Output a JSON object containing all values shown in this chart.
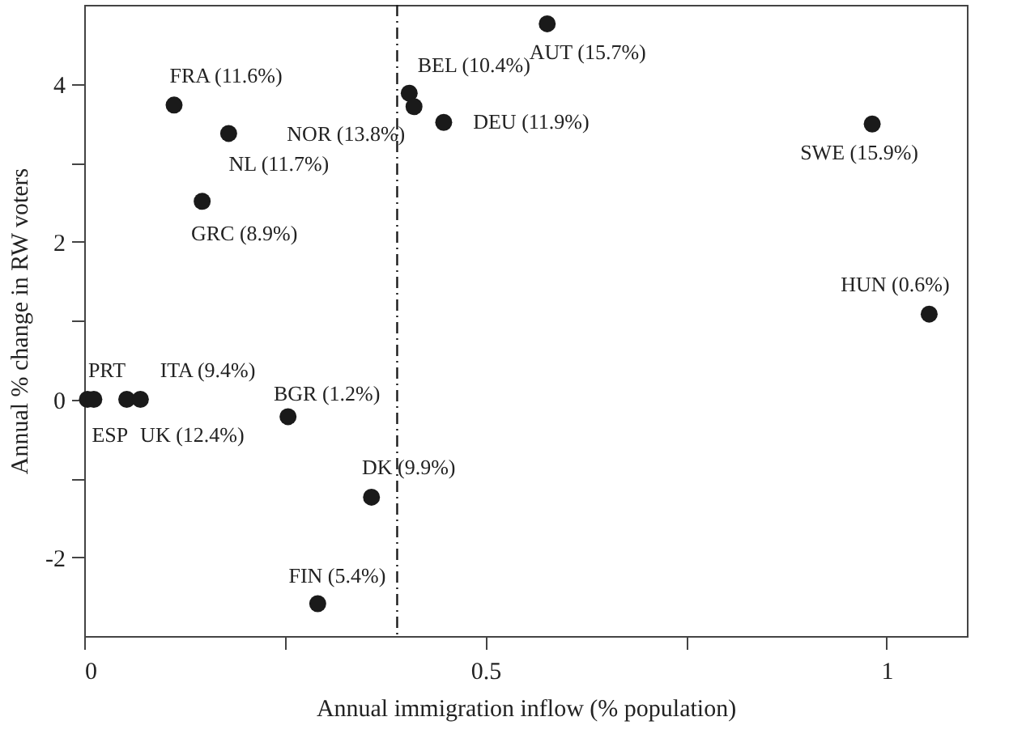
{
  "chart_data": {
    "type": "scatter",
    "xlabel": "Annual immigration inflow (% population)",
    "ylabel": "Annual % change in RW voters",
    "x": [
      0.112,
      0.18,
      0.147,
      0.405,
      0.411,
      0.448,
      0.577,
      0.982,
      1.053,
      0.004,
      0.012,
      0.053,
      0.07,
      0.254,
      0.358,
      0.291
    ],
    "series": [
      {
        "color": "#1a1a1a",
        "values": [
          3.73,
          3.37,
          2.51,
          3.88,
          3.71,
          3.51,
          4.76,
          3.49,
          1.08,
          0,
          0,
          0,
          0,
          -0.22,
          -1.24,
          -2.59
        ]
      }
    ],
    "annotations": [
      {
        "text": "FRA (11.6%)",
        "x": 0.112,
        "y": 3.73
      },
      {
        "text": "NL (11.7%)",
        "x": 0.18,
        "y": 3.37
      },
      {
        "text": "GRC (8.9%)",
        "x": 0.147,
        "y": 2.51
      },
      {
        "text": "BEL (10.4%)",
        "x": 0.405,
        "y": 3.88
      },
      {
        "text": "NOR (13.8%)",
        "x": 0.411,
        "y": 3.71
      },
      {
        "text": "DEU (11.9%)",
        "x": 0.448,
        "y": 3.51
      },
      {
        "text": "AUT (15.7%)",
        "x": 0.577,
        "y": 4.76
      },
      {
        "text": "SWE (15.9%)",
        "x": 0.982,
        "y": 3.49
      },
      {
        "text": "HUN (0.6%)",
        "x": 1.053,
        "y": 1.08
      },
      {
        "text": "PRT",
        "x": 0.004,
        "y": 0
      },
      {
        "text": "ESP",
        "x": 0.012,
        "y": 0
      },
      {
        "text": "ITA (9.4%)",
        "x": 0.053,
        "y": 0
      },
      {
        "text": "UK (12.4%)",
        "x": 0.07,
        "y": 0
      },
      {
        "text": "BGR (1.2%)",
        "x": 0.254,
        "y": -0.22
      },
      {
        "text": "DK (9.9%)",
        "x": 0.358,
        "y": -1.24
      },
      {
        "text": "FIN (5.4%)",
        "x": 0.291,
        "y": -2.59
      }
    ],
    "ref_lines": [
      {
        "axis": "x",
        "value": 0.39,
        "color": "#1a1a1a",
        "line_style": "dashed"
      }
    ],
    "xlim": [
      0,
      1.1
    ],
    "ylim": [
      -3,
      5
    ],
    "xticks": [
      0,
      {
        "value": 0.25,
        "label": null
      },
      0.5,
      {
        "value": 0.75,
        "label": null
      },
      1
    ],
    "yticks": [
      -2,
      {
        "value": -1,
        "label": null
      },
      0,
      {
        "value": 1,
        "label": null
      },
      2,
      {
        "value": 3,
        "label": null
      },
      4
    ],
    "marker": "circle",
    "grid": false
  }
}
